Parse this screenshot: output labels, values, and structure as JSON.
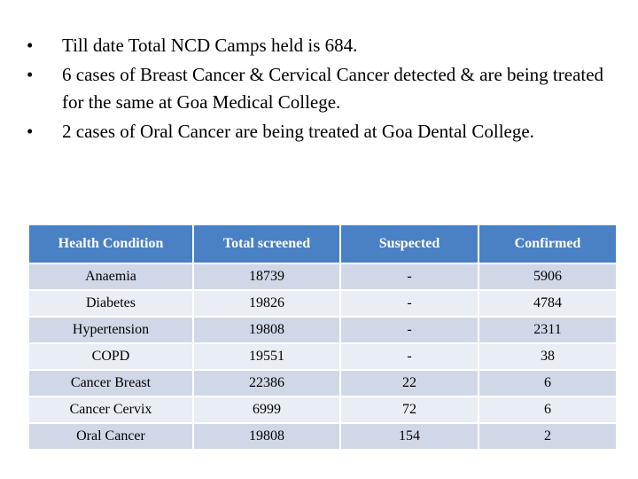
{
  "bullets": [
    "Till date Total NCD Camps held is 684.",
    "6 cases of Breast Cancer & Cervical Cancer detected & are being treated for the same at Goa Medical College.",
    "2 cases of Oral Cancer are being treated at Goa Dental College."
  ],
  "table": {
    "headers": [
      "Health Condition",
      "Total screened",
      "Suspected",
      "Confirmed"
    ],
    "rows": [
      [
        "Anaemia",
        "18739",
        "-",
        "5906"
      ],
      [
        "Diabetes",
        "19826",
        "-",
        "4784"
      ],
      [
        "Hypertension",
        "19808",
        "-",
        "2311"
      ],
      [
        "COPD",
        "19551",
        "-",
        "38"
      ],
      [
        "Cancer Breast",
        "22386",
        "22",
        "6"
      ],
      [
        "Cancer Cervix",
        "6999",
        "72",
        "6"
      ],
      [
        "Oral Cancer",
        "19808",
        "154",
        "2"
      ]
    ]
  }
}
